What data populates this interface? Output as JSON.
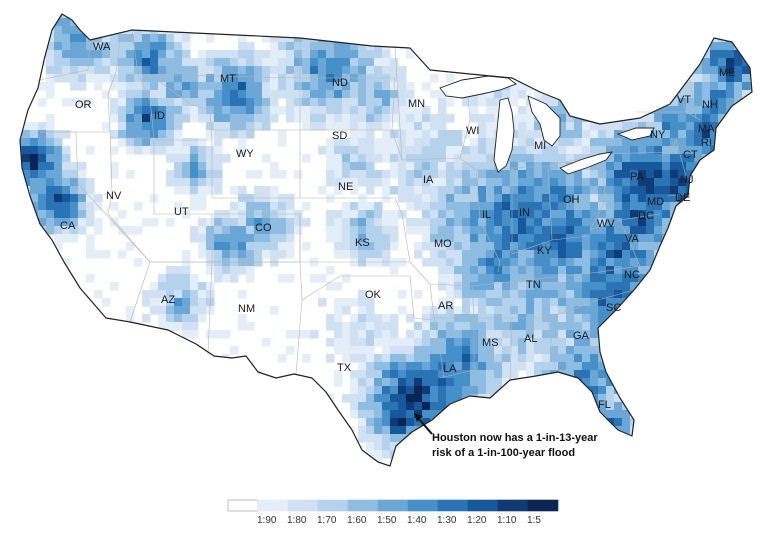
{
  "map": {
    "state_labels": [
      "WA",
      "OR",
      "CA",
      "NV",
      "ID",
      "MT",
      "WY",
      "UT",
      "CO",
      "AZ",
      "NM",
      "ND",
      "SD",
      "NE",
      "KS",
      "OK",
      "TX",
      "MN",
      "IA",
      "MO",
      "AR",
      "LA",
      "WI",
      "IL",
      "MS",
      "MI",
      "IN",
      "KY",
      "TN",
      "AL",
      "OH",
      "WV",
      "GA",
      "FL",
      "SC",
      "NC",
      "VA",
      "PA",
      "NY",
      "VT",
      "NH",
      "ME",
      "MA",
      "RI",
      "CT",
      "NJ",
      "DE",
      "MD",
      "DC"
    ],
    "annotation": {
      "line1": "Houston now has a 1-in-13-year",
      "line2": "risk of a 1-in-100-year flood"
    },
    "colors": {
      "c0": "#ffffff",
      "c1": "#e4eef8",
      "c2": "#cfe1f2",
      "c3": "#b5d2ec",
      "c4": "#8fbde2",
      "c5": "#6aa7d6",
      "c6": "#4590c8",
      "c7": "#2a73b5",
      "c8": "#17579b",
      "c9": "#0f3a73",
      "c10": "#0a2554"
    }
  },
  "legend": {
    "bins": [
      "",
      "1:90",
      "1:80",
      "1:70",
      "1:60",
      "1:50",
      "1:40",
      "1:30",
      "1:20",
      "1:10",
      "1:5"
    ]
  }
}
